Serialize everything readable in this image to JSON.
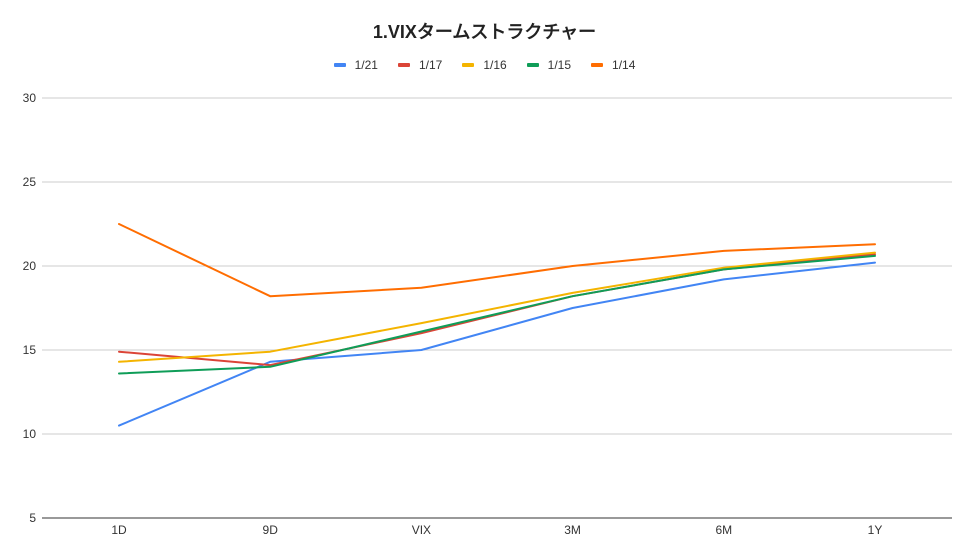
{
  "chart_data": {
    "type": "line",
    "title": "1.VIXタームストラクチャー",
    "xlabel": "",
    "ylabel": "",
    "categories": [
      "1D",
      "9D",
      "VIX",
      "3M",
      "6M",
      "1Y"
    ],
    "ylim": [
      5,
      30
    ],
    "yticks": [
      5,
      10,
      15,
      20,
      25,
      30
    ],
    "grid": true,
    "legend_position": "top",
    "series": [
      {
        "name": "1/21",
        "color": "#4285f4",
        "values": [
          10.5,
          14.3,
          15.0,
          17.5,
          19.2,
          20.2
        ]
      },
      {
        "name": "1/17",
        "color": "#db4437",
        "values": [
          14.9,
          14.1,
          16.0,
          18.2,
          19.8,
          20.7
        ]
      },
      {
        "name": "1/16",
        "color": "#f4b400",
        "values": [
          14.3,
          14.9,
          16.6,
          18.4,
          19.9,
          20.8
        ]
      },
      {
        "name": "1/15",
        "color": "#0f9d58",
        "values": [
          13.6,
          14.0,
          16.1,
          18.2,
          19.8,
          20.6
        ]
      },
      {
        "name": "1/14",
        "color": "#ff6d01",
        "values": [
          22.5,
          18.2,
          18.7,
          20.0,
          20.9,
          21.3
        ]
      }
    ]
  }
}
